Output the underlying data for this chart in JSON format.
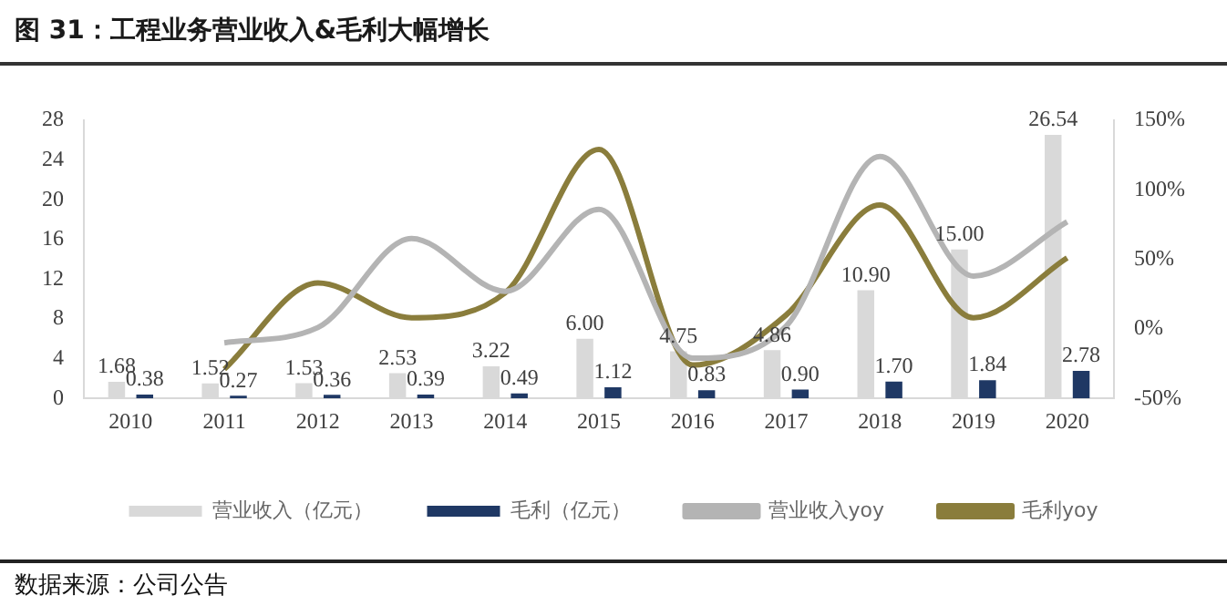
{
  "chart_data": {
    "type": "bar",
    "title": "图 31：工程业务营业收入&毛利大幅增长",
    "categories": [
      "2010",
      "2011",
      "2012",
      "2013",
      "2014",
      "2015",
      "2016",
      "2017",
      "2018",
      "2019",
      "2020"
    ],
    "series": [
      {
        "name": "营业收入（亿元）",
        "color": "#d9d9d9",
        "values": [
          1.68,
          1.52,
          1.53,
          2.53,
          3.22,
          6.0,
          4.75,
          4.86,
          10.9,
          15.0,
          26.54
        ],
        "value_labels": [
          "1.68",
          "1.52",
          "1.53",
          "2.53",
          "3.22",
          "6.00",
          "4.75",
          "4.86",
          "10.90",
          "15.00",
          "26.54"
        ]
      },
      {
        "name": "毛利（亿元）",
        "color": "#1f3864",
        "values": [
          0.38,
          0.27,
          0.36,
          0.39,
          0.49,
          1.12,
          0.83,
          0.9,
          1.7,
          1.84,
          2.78
        ],
        "value_labels": [
          "0.38",
          "0.27",
          "0.36",
          "0.39",
          "0.49",
          "1.12",
          "0.83",
          "0.90",
          "1.70",
          "1.84",
          "2.78"
        ]
      },
      {
        "name": "营业收入yoy",
        "type": "line",
        "axis": "y2",
        "color": "#b4b4b4",
        "values": [
          null,
          -10,
          1,
          65,
          27,
          86,
          -21,
          2,
          124,
          38,
          77
        ]
      },
      {
        "name": "毛利yoy",
        "type": "line",
        "axis": "y2",
        "color": "#8a7d3c",
        "values": [
          null,
          -29,
          33,
          8,
          26,
          129,
          -26,
          10,
          89,
          8,
          51
        ]
      }
    ],
    "ylim": [
      0,
      28
    ],
    "yticks": [
      0,
      4,
      8,
      12,
      16,
      20,
      24,
      28
    ],
    "y2lim": [
      -50,
      150
    ],
    "y2ticks": [
      {
        "value": -50,
        "label": "-50%"
      },
      {
        "value": 0,
        "label": "0%"
      },
      {
        "value": 50,
        "label": "50%"
      },
      {
        "value": 100,
        "label": "100%"
      },
      {
        "value": 150,
        "label": "150%"
      }
    ],
    "grid": false,
    "legend": "bottom",
    "marker": "none",
    "annotations": [
      "数据来源：公司公告"
    ]
  }
}
